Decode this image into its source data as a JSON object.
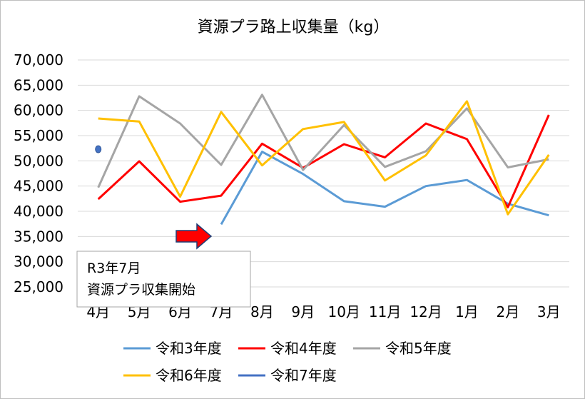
{
  "chart_data": {
    "type": "line",
    "title": "資源プラ路上収集量（kg）",
    "categories": [
      "4月",
      "5月",
      "6月",
      "7月",
      "8月",
      "9月",
      "10月",
      "11月",
      "12月",
      "1月",
      "2月",
      "3月"
    ],
    "ylim": [
      25000,
      70000
    ],
    "yticks": [
      25000,
      30000,
      35000,
      40000,
      45000,
      50000,
      55000,
      60000,
      65000,
      70000
    ],
    "ytick_labels": [
      "25,000",
      "30,000",
      "35,000",
      "40,000",
      "45,000",
      "50,000",
      "55,000",
      "60,000",
      "65,000",
      "70,000"
    ],
    "grid": true,
    "legend_position": "bottom",
    "series": [
      {
        "name": "令和3年度",
        "color": "#5b9bd5",
        "values": [
          null,
          null,
          null,
          37400,
          51800,
          47400,
          42000,
          40900,
          45000,
          46200,
          41500,
          39200
        ]
      },
      {
        "name": "令和4年度",
        "color": "#ff0000",
        "values": [
          42400,
          49900,
          41900,
          43100,
          53400,
          48600,
          53300,
          50700,
          57400,
          54300,
          40800,
          59100
        ]
      },
      {
        "name": "令和5年度",
        "color": "#a5a5a5",
        "values": [
          44700,
          62800,
          57400,
          49200,
          63100,
          48200,
          57100,
          48800,
          51900,
          60400,
          48700,
          50300
        ]
      },
      {
        "name": "令和6年度",
        "color": "#ffc000",
        "values": [
          58400,
          57800,
          42900,
          59700,
          49100,
          56300,
          57700,
          46100,
          51100,
          61800,
          39400,
          51200
        ]
      },
      {
        "name": "令和7年度",
        "color": "#4472c4",
        "values": [
          52300,
          null,
          null,
          null,
          null,
          null,
          null,
          null,
          null,
          null,
          null,
          null
        ]
      }
    ],
    "annotation": {
      "lines": [
        "R3年7月",
        "資源プラ収集開始"
      ],
      "arrow_color": "#ff0000"
    }
  }
}
